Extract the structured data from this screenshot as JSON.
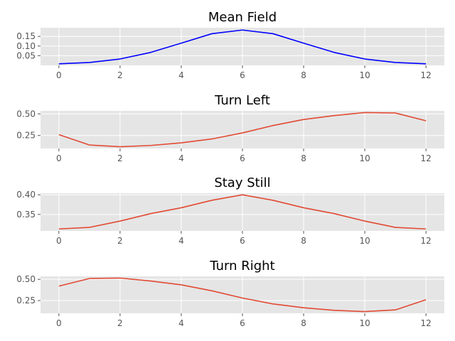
{
  "chart_data": [
    {
      "type": "line",
      "title": "Mean Field",
      "x": [
        0,
        1,
        2,
        3,
        4,
        5,
        6,
        7,
        8,
        9,
        10,
        11,
        12
      ],
      "series": [
        {
          "values": [
            0.008,
            0.015,
            0.033,
            0.067,
            0.115,
            0.164,
            0.183,
            0.164,
            0.115,
            0.067,
            0.033,
            0.015,
            0.008
          ],
          "color": "#0000ff"
        }
      ],
      "xlim": [
        -0.6,
        12.6
      ],
      "ylim": [
        0.0,
        0.195
      ],
      "xticks": [
        0,
        2,
        4,
        6,
        8,
        10,
        12
      ],
      "yticks": [
        0.05,
        0.1,
        0.15
      ],
      "ytick_labels": [
        "0.05",
        "0.10",
        "0.15"
      ],
      "grid": true
    },
    {
      "type": "line",
      "title": "Turn Left",
      "x": [
        0,
        1,
        2,
        3,
        4,
        5,
        6,
        7,
        8,
        9,
        10,
        11,
        12
      ],
      "series": [
        {
          "values": [
            0.26,
            0.14,
            0.12,
            0.135,
            0.165,
            0.21,
            0.28,
            0.365,
            0.435,
            0.48,
            0.515,
            0.51,
            0.42
          ],
          "color": "#e24a33"
        }
      ],
      "xlim": [
        -0.6,
        12.6
      ],
      "ylim": [
        0.1,
        0.535
      ],
      "xticks": [
        0,
        2,
        4,
        6,
        8,
        10,
        12
      ],
      "yticks": [
        0.25,
        0.5
      ],
      "ytick_labels": [
        "0.25",
        "0.50"
      ],
      "grid": true
    },
    {
      "type": "line",
      "title": "Stay Still",
      "x": [
        0,
        1,
        2,
        3,
        4,
        5,
        6,
        7,
        8,
        9,
        10,
        11,
        12
      ],
      "series": [
        {
          "values": [
            0.313,
            0.317,
            0.333,
            0.352,
            0.367,
            0.386,
            0.4,
            0.386,
            0.367,
            0.352,
            0.333,
            0.317,
            0.313
          ],
          "color": "#e24a33"
        }
      ],
      "xlim": [
        -0.6,
        12.6
      ],
      "ylim": [
        0.308,
        0.404
      ],
      "xticks": [
        0,
        2,
        4,
        6,
        8,
        10,
        12
      ],
      "yticks": [
        0.35,
        0.4
      ],
      "ytick_labels": [
        "0.35",
        "0.40"
      ],
      "grid": true
    },
    {
      "type": "line",
      "title": "Turn Right",
      "x": [
        0,
        1,
        2,
        3,
        4,
        5,
        6,
        7,
        8,
        9,
        10,
        11,
        12
      ],
      "series": [
        {
          "values": [
            0.42,
            0.51,
            0.515,
            0.48,
            0.435,
            0.365,
            0.28,
            0.21,
            0.165,
            0.135,
            0.12,
            0.14,
            0.26
          ],
          "color": "#e24a33"
        }
      ],
      "xlim": [
        -0.6,
        12.6
      ],
      "ylim": [
        0.1,
        0.535
      ],
      "xticks": [
        0,
        2,
        4,
        6,
        8,
        10,
        12
      ],
      "yticks": [
        0.25,
        0.5
      ],
      "ytick_labels": [
        "0.25",
        "0.50"
      ],
      "grid": true
    }
  ]
}
